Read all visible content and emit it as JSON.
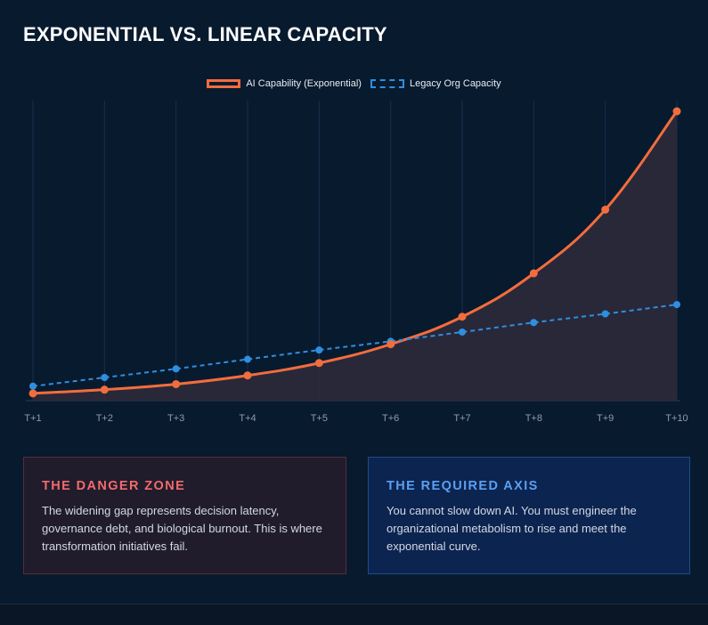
{
  "page": {
    "title": "EXPONENTIAL VS. LINEAR CAPACITY"
  },
  "legend": {
    "series_1": "AI Capability (Exponential)",
    "series_2": "Legacy Org Capacity"
  },
  "chart_data": {
    "type": "line",
    "title": "EXPONENTIAL VS. LINEAR CAPACITY",
    "xlabel": "",
    "ylabel": "",
    "x": [
      "T+1",
      "T+2",
      "T+3",
      "T+4",
      "T+5",
      "T+6",
      "T+7",
      "T+8",
      "T+9",
      "T+10"
    ],
    "ylim": [
      0,
      100
    ],
    "grid": "vertical",
    "legend_position": "top-center",
    "series": [
      {
        "name": "AI Capability (Exponential)",
        "values": [
          2.5,
          3.8,
          5.7,
          8.7,
          13.0,
          19.5,
          29.0,
          44.0,
          66.0,
          100.0
        ],
        "color": "#f26d3d",
        "style": "solid",
        "fill": true
      },
      {
        "name": "Legacy Org Capacity",
        "values": [
          5.0,
          8.0,
          11.0,
          14.3,
          17.5,
          20.5,
          23.7,
          27.0,
          30.0,
          33.2
        ],
        "color": "#2e8fe0",
        "style": "dashed",
        "fill": false
      }
    ]
  },
  "cards": {
    "danger": {
      "heading": "THE DANGER ZONE",
      "body": "The widening gap represents decision latency, governance debt, and biological burnout. This is where transformation initiatives fail."
    },
    "axis": {
      "heading": "THE REQUIRED AXIS",
      "body": "You cannot slow down AI. You must engineer the organizational metabolism to rise and meet the exponential curve."
    }
  },
  "colors": {
    "background": "#081a2e",
    "exponential": "#f26d3d",
    "linear": "#2e8fe0",
    "danger_heading": "#f36a6a",
    "axis_heading": "#5aa0f0"
  }
}
